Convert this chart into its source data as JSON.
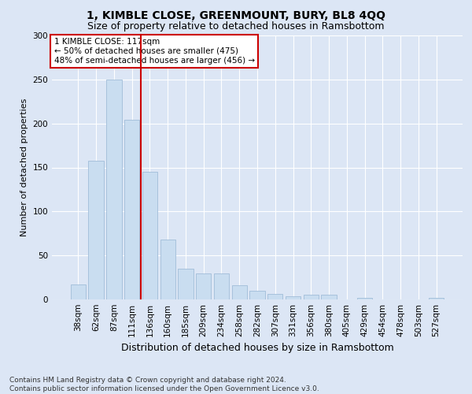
{
  "title1": "1, KIMBLE CLOSE, GREENMOUNT, BURY, BL8 4QQ",
  "title2": "Size of property relative to detached houses in Ramsbottom",
  "xlabel": "Distribution of detached houses by size in Ramsbottom",
  "ylabel": "Number of detached properties",
  "categories": [
    "38sqm",
    "62sqm",
    "87sqm",
    "111sqm",
    "136sqm",
    "160sqm",
    "185sqm",
    "209sqm",
    "234sqm",
    "258sqm",
    "282sqm",
    "307sqm",
    "331sqm",
    "356sqm",
    "380sqm",
    "405sqm",
    "429sqm",
    "454sqm",
    "478sqm",
    "503sqm",
    "527sqm"
  ],
  "values": [
    17,
    158,
    250,
    204,
    145,
    68,
    35,
    30,
    30,
    16,
    10,
    6,
    4,
    5,
    5,
    0,
    2,
    0,
    0,
    0,
    2
  ],
  "bar_color": "#c9ddf0",
  "bar_edge_color": "#a0bcd8",
  "vline_color": "#cc0000",
  "vline_position": 3.5,
  "annotation_text": "1 KIMBLE CLOSE: 117sqm\n← 50% of detached houses are smaller (475)\n48% of semi-detached houses are larger (456) →",
  "annotation_box_color": "#ffffff",
  "annotation_box_edge": "#cc0000",
  "background_color": "#dce6f5",
  "grid_color": "#ffffff",
  "ylim": [
    0,
    300
  ],
  "yticks": [
    0,
    50,
    100,
    150,
    200,
    250,
    300
  ],
  "footnote": "Contains HM Land Registry data © Crown copyright and database right 2024.\nContains public sector information licensed under the Open Government Licence v3.0.",
  "title1_fontsize": 10,
  "title2_fontsize": 9,
  "xlabel_fontsize": 9,
  "ylabel_fontsize": 8,
  "tick_fontsize": 7.5,
  "annot_fontsize": 7.5,
  "footnote_fontsize": 6.5
}
